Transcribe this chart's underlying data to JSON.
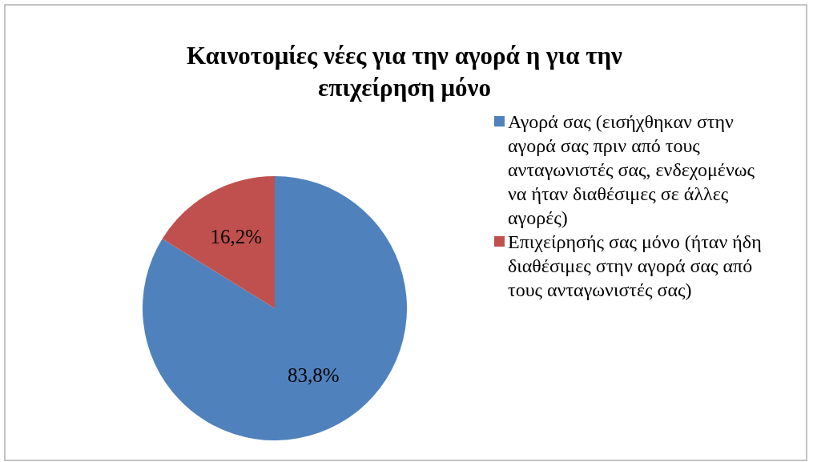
{
  "chart_data": {
    "type": "pie",
    "title": "Καινοτομίες νέες για την αγορά η για την επιχείρηση μόνο",
    "categories": [
      "Αγορά σας (εισήχθηκαν στην αγορά σας πριν από τους ανταγωνιστές σας, ενδεχομένως να ήταν διαθέσιμες σε άλλες αγορές)",
      "Επιχείρησής σας μόνο (ήταν ήδη διαθέσιμες στην αγορά σας από τους ανταγωνιστές σας)"
    ],
    "values": [
      83.8,
      16.2
    ],
    "colors": [
      "#4f81bd",
      "#c0504d"
    ],
    "value_labels": [
      "83,8%",
      "16,2%"
    ],
    "legend": "right"
  }
}
